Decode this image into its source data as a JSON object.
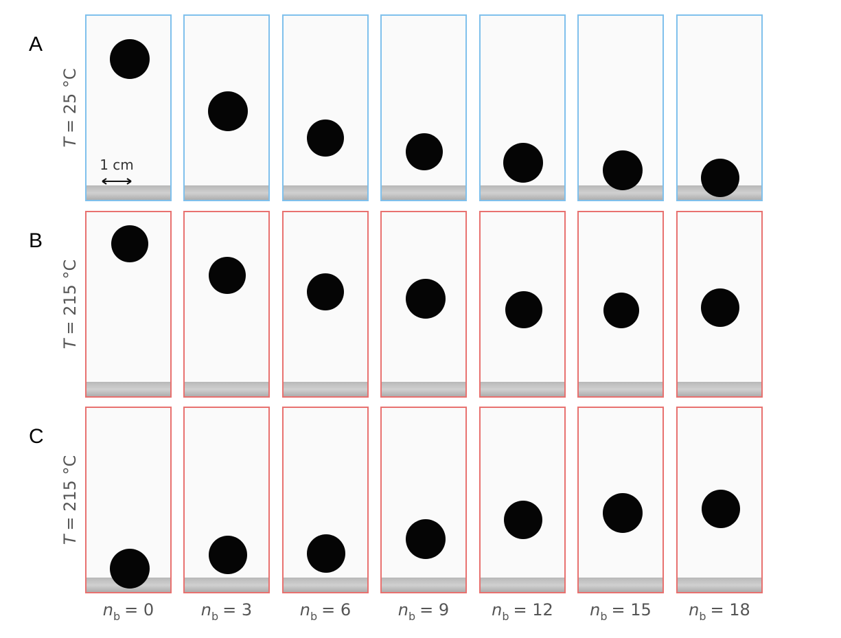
{
  "rows": [
    {
      "letter": "A",
      "temperature": {
        "symbol": "T",
        "text": "= 25 °C"
      }
    },
    {
      "letter": "B",
      "temperature": {
        "symbol": "T",
        "text": "= 215 °C"
      }
    },
    {
      "letter": "C",
      "temperature": {
        "symbol": "T",
        "text": "= 215 °C"
      }
    }
  ],
  "columns": [
    {
      "symbol": "n",
      "subscript": "b",
      "text": "= 0"
    },
    {
      "symbol": "n",
      "subscript": "b",
      "text": "= 3"
    },
    {
      "symbol": "n",
      "subscript": "b",
      "text": "= 6"
    },
    {
      "symbol": "n",
      "subscript": "b",
      "text": "= 9"
    },
    {
      "symbol": "n",
      "subscript": "b",
      "text": "= 12"
    },
    {
      "symbol": "n",
      "subscript": "b",
      "text": "= 15"
    },
    {
      "symbol": "n",
      "subscript": "b",
      "text": "= 18"
    }
  ],
  "scale_bar": "1 cm"
}
